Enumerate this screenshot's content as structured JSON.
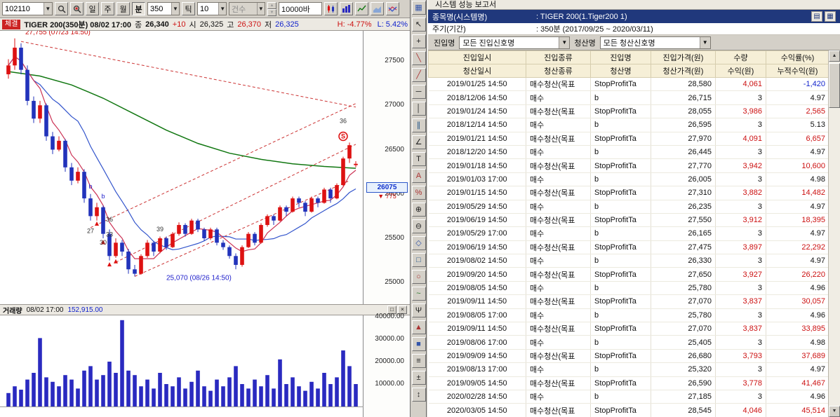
{
  "colors": {
    "up_red": "#dd1111",
    "down_blue": "#2233bb",
    "navy": "#20387c",
    "header_yellow": "#f6efd7",
    "volume_blue": "#2a2ac0",
    "ma_green": "#117711",
    "ma_blue": "#3355cc",
    "ma_red": "#cc3355"
  },
  "left": {
    "toolbar": {
      "symbol": "102110",
      "period_buttons": [
        "일",
        "주",
        "월",
        "분"
      ],
      "active_period": "분",
      "minute_value": "350",
      "tick_label": "틱",
      "tick_value": "10",
      "count_label": "건수",
      "bars_value": "10000바"
    },
    "titlebar": {
      "tab": "체결",
      "title": "TIGER 200(350분) 08/02 17:00",
      "close_label": "종",
      "close_value": "26,340",
      "change": "+10",
      "open_label": "시",
      "open_value": "26,325",
      "high_label": "고",
      "high_value": "26,370",
      "low_label": "저",
      "low_value": "26,325",
      "h_pct": "H: -4.77%",
      "l_pct": "L: 5.42%"
    },
    "volume_bar": {
      "label": "거래량",
      "time": "08/02 17:00",
      "value": "152,915.00",
      "restore_glyph": "□",
      "close_glyph": "×"
    }
  },
  "tool_strip": {
    "icons": [
      {
        "name": "chart-grid-icon",
        "glyph": "▦",
        "color": "#3355aa"
      },
      {
        "name": "cursor-icon",
        "glyph": "↖",
        "color": "#222222"
      },
      {
        "name": "crosshair-icon",
        "glyph": "+",
        "color": "#222222"
      },
      {
        "name": "trendline-down-icon",
        "glyph": "╲",
        "color": "#aa3333"
      },
      {
        "name": "trendline-up-icon",
        "glyph": "╱",
        "color": "#aa3333"
      },
      {
        "name": "horizontal-line-icon",
        "glyph": "─",
        "color": "#222222"
      },
      {
        "name": "vertical-line-icon",
        "glyph": "│",
        "color": "#222222"
      },
      {
        "name": "parallel-channel-icon",
        "glyph": "∥",
        "color": "#225588"
      },
      {
        "name": "angle-line-icon",
        "glyph": "∠",
        "color": "#222222"
      },
      {
        "name": "text-tool-icon",
        "glyph": "T",
        "color": "#222222"
      },
      {
        "name": "annotation-icon",
        "glyph": "A",
        "color": "#aa3333"
      },
      {
        "name": "percent-retracement-icon",
        "glyph": "%",
        "color": "#aa3333"
      },
      {
        "name": "zoom-in-icon",
        "glyph": "⊕",
        "color": "#222222"
      },
      {
        "name": "zoom-out-icon",
        "glyph": "⊖",
        "color": "#222222"
      },
      {
        "name": "diamond-marker-icon",
        "glyph": "◇",
        "color": "#3355aa"
      },
      {
        "name": "rect-marker-icon",
        "glyph": "□",
        "color": "#225588"
      },
      {
        "name": "circle-marker-icon",
        "glyph": "○",
        "color": "#aa3333"
      },
      {
        "name": "wave-icon",
        "glyph": "~",
        "color": "#2a7a2a"
      },
      {
        "name": "pitchfork-icon",
        "glyph": "Ψ",
        "color": "#222222"
      },
      {
        "name": "triangle-marker-icon",
        "glyph": "▲",
        "color": "#aa3333"
      },
      {
        "name": "square-marker-icon",
        "glyph": "■",
        "color": "#3355aa"
      },
      {
        "name": "fibonacci-icon",
        "glyph": "≡",
        "color": "#222222"
      },
      {
        "name": "plus-minus-icon",
        "glyph": "±",
        "color": "#222222"
      },
      {
        "name": "scroll-tool-icon",
        "glyph": "↕",
        "color": "#222222"
      }
    ]
  },
  "chart_data": {
    "type": "candlestick+volume",
    "title": "TIGER 200(350분) 08/02 17:00",
    "last": {
      "close": 26340,
      "change": "+10",
      "open": 26325,
      "high": 26370,
      "low": 26325
    },
    "y_ticks": [
      27500,
      27000,
      26500,
      26000,
      25500,
      25000
    ],
    "volume_ticks": [
      "40000.00",
      "30000.00",
      "20000.00",
      "10000.00"
    ],
    "current_marker": {
      "price": 26075,
      "label": "26075",
      "change_label": "▼ 775"
    },
    "candles": [
      [
        27350,
        27520,
        27300,
        27450
      ],
      [
        27450,
        27755,
        27400,
        27650
      ],
      [
        27650,
        27700,
        27350,
        27400
      ],
      [
        27400,
        27450,
        27000,
        27050
      ],
      [
        27050,
        27100,
        26800,
        26850
      ],
      [
        26850,
        27050,
        26800,
        27000
      ],
      [
        27000,
        27020,
        26600,
        26650
      ],
      [
        26650,
        26700,
        26450,
        26500
      ],
      [
        26500,
        26650,
        26480,
        26600
      ],
      [
        26600,
        26620,
        26250,
        26300
      ],
      [
        26300,
        26350,
        26100,
        26150
      ],
      [
        26150,
        26300,
        26120,
        26250
      ],
      [
        26250,
        26280,
        25900,
        25950
      ],
      [
        25950,
        26000,
        25700,
        25750
      ],
      [
        25750,
        25900,
        25700,
        25850
      ],
      [
        25850,
        25870,
        25500,
        25550
      ],
      [
        25550,
        25600,
        25250,
        25300
      ],
      [
        25300,
        25500,
        25280,
        25450
      ],
      [
        25450,
        25480,
        25300,
        25350
      ],
      [
        25350,
        25380,
        25100,
        25150
      ],
      [
        25150,
        25200,
        25070,
        25100
      ],
      [
        25100,
        25320,
        25090,
        25300
      ],
      [
        25300,
        25480,
        25280,
        25450
      ],
      [
        25450,
        25470,
        25300,
        25350
      ],
      [
        25350,
        25520,
        25330,
        25500
      ],
      [
        25500,
        25520,
        25370,
        25400
      ],
      [
        25400,
        25570,
        25390,
        25550
      ],
      [
        25550,
        25680,
        25530,
        25650
      ],
      [
        25650,
        25670,
        25520,
        25550
      ],
      [
        25550,
        25720,
        25540,
        25700
      ],
      [
        25700,
        25720,
        25570,
        25600
      ],
      [
        25600,
        25620,
        25470,
        25500
      ],
      [
        25500,
        25620,
        25480,
        25600
      ],
      [
        25600,
        25620,
        25420,
        25450
      ],
      [
        25450,
        25480,
        25370,
        25400
      ],
      [
        25400,
        25420,
        25270,
        25300
      ],
      [
        25300,
        25330,
        25150,
        25200
      ],
      [
        25200,
        25420,
        25180,
        25400
      ],
      [
        25400,
        25570,
        25390,
        25550
      ],
      [
        25550,
        25570,
        25420,
        25450
      ],
      [
        25450,
        25670,
        25440,
        25650
      ],
      [
        25650,
        25770,
        25630,
        25750
      ],
      [
        25750,
        25770,
        25650,
        25700
      ],
      [
        25700,
        25870,
        25690,
        25850
      ],
      [
        25850,
        25870,
        25750,
        25800
      ],
      [
        25800,
        25970,
        25790,
        25950
      ],
      [
        25950,
        25970,
        25850,
        25900
      ],
      [
        25900,
        25920,
        25750,
        25800
      ],
      [
        25800,
        25970,
        25790,
        25950
      ],
      [
        25950,
        25970,
        25850,
        25900
      ],
      [
        25900,
        26070,
        25890,
        26050
      ],
      [
        26050,
        26070,
        25900,
        25950
      ],
      [
        25950,
        26120,
        25940,
        26100
      ],
      [
        26100,
        26420,
        26090,
        26400
      ],
      [
        26400,
        26580,
        26350,
        26550
      ],
      [
        26325,
        26370,
        26300,
        26340
      ]
    ],
    "volumes": [
      6000,
      9000,
      7500,
      12000,
      15000,
      30500,
      13000,
      11000,
      9000,
      14000,
      12000,
      8000,
      16000,
      18000,
      12000,
      14000,
      20000,
      15000,
      38500,
      16000,
      14000,
      9000,
      12000,
      8000,
      15000,
      10000,
      9000,
      13000,
      8000,
      11000,
      16000,
      9000,
      7000,
      12000,
      9000,
      13000,
      18000,
      10000,
      8000,
      12000,
      9000,
      14000,
      8000,
      21000,
      10000,
      13000,
      9000,
      7000,
      11000,
      8000,
      15000,
      10000,
      13000,
      25000,
      18000,
      10000
    ],
    "ma_green": [
      [
        0,
        27380
      ],
      [
        5,
        27330
      ],
      [
        10,
        27230
      ],
      [
        15,
        27080
      ],
      [
        20,
        26900
      ],
      [
        25,
        26720
      ],
      [
        30,
        26570
      ],
      [
        35,
        26460
      ],
      [
        40,
        26390
      ],
      [
        45,
        26340
      ],
      [
        50,
        26310
      ],
      [
        55,
        26290
      ]
    ],
    "trendlines": [
      [
        2,
        27720,
        55,
        26980
      ],
      [
        13,
        25620,
        55,
        27020
      ],
      [
        17,
        25230,
        55,
        26560
      ],
      [
        20,
        25070,
        54,
        26150
      ]
    ],
    "labels": [
      {
        "i": 2,
        "p": 27800,
        "text": "27,755 (07/23 14:50)",
        "color": "#cc1111",
        "anchor": "start",
        "dx": 6,
        "size": 10
      },
      {
        "i": 25,
        "p": 25030,
        "text": "25,070 (08/26 14:50)",
        "color": "#2222cc",
        "anchor": "start",
        "dx": 0,
        "size": 10
      },
      {
        "i": 13,
        "p": 26060,
        "text": "b",
        "color": "#2222cc",
        "size": 9
      },
      {
        "i": 15,
        "p": 25950,
        "text": "b",
        "color": "#2222cc",
        "size": 9
      },
      {
        "i": 13,
        "p": 25560,
        "text": "27",
        "color": "#333333",
        "size": 9
      },
      {
        "i": 16,
        "p": 25690,
        "text": "36",
        "color": "#333333",
        "size": 9
      },
      {
        "i": 16,
        "p": 25520,
        "text": "33",
        "color": "#333333",
        "size": 9
      },
      {
        "i": 15,
        "p": 25430,
        "text": "30",
        "color": "#333333",
        "size": 9
      },
      {
        "i": 24,
        "p": 25580,
        "text": "39",
        "color": "#333333",
        "size": 9
      },
      {
        "i": 53,
        "p": 26800,
        "text": "36",
        "color": "#333333",
        "size": 9
      }
    ],
    "arrows": [
      {
        "i": 14,
        "p": 25690
      },
      {
        "i": 15,
        "p": 25480
      },
      {
        "i": 16,
        "p": 25230
      },
      {
        "i": 17,
        "p": 25265
      }
    ],
    "s_marker": {
      "i": 53,
      "p": 26650,
      "text": "S"
    }
  },
  "report": {
    "title": "시스템 성능 보고서",
    "symbol_row": {
      "label": "종목명(시스템명)",
      "value": ": TIGER 200(1.Tiger200 1)"
    },
    "period_row": {
      "label": "주기(기간)",
      "value": ": 350분  (2017/09/25 ~ 2020/03/11)"
    },
    "filters": {
      "entry_label": "진입명",
      "entry_value": "모든 진입신호명",
      "exit_label": "청산명",
      "exit_value": "모든 청산신호명"
    },
    "icons": {
      "print_glyph": "▤",
      "export_glyph": "▦"
    },
    "table": {
      "header_row1": [
        "진입일시",
        "진입종류",
        "진입명",
        "진입가격(원)",
        "수량",
        "수익률(%)"
      ],
      "header_row2": [
        "청산일시",
        "청산종류",
        "청산명",
        "청산가격(원)",
        "수익(원)",
        "누적수익(원)"
      ],
      "rows": [
        {
          "date": "2019/01/25 14:50",
          "type": "매수청산(목표",
          "name": "StopProfitTa",
          "price": "28,580",
          "qty": "4,061",
          "ret": "-1,420",
          "kind": "exit"
        },
        {
          "date": "2018/12/06 14:50",
          "type": "매수",
          "name": "b",
          "price": "26,715",
          "qty": "3",
          "ret": "4.97",
          "kind": "entry"
        },
        {
          "date": "2019/01/24 14:50",
          "type": "매수청산(목표",
          "name": "StopProfitTa",
          "price": "28,055",
          "qty": "3,986",
          "ret": "2,565",
          "kind": "exit"
        },
        {
          "date": "2018/12/14 14:50",
          "type": "매수",
          "name": "b",
          "price": "26,595",
          "qty": "3",
          "ret": "5.13",
          "kind": "entry"
        },
        {
          "date": "2019/01/21 14:50",
          "type": "매수청산(목표",
          "name": "StopProfitTa",
          "price": "27,970",
          "qty": "4,091",
          "ret": "6,657",
          "kind": "exit"
        },
        {
          "date": "2018/12/20 14:50",
          "type": "매수",
          "name": "b",
          "price": "26,445",
          "qty": "3",
          "ret": "4.97",
          "kind": "entry"
        },
        {
          "date": "2019/01/18 14:50",
          "type": "매수청산(목표",
          "name": "StopProfitTa",
          "price": "27,770",
          "qty": "3,942",
          "ret": "10,600",
          "kind": "exit"
        },
        {
          "date": "2019/01/03 17:00",
          "type": "매수",
          "name": "b",
          "price": "26,005",
          "qty": "3",
          "ret": "4.98",
          "kind": "entry"
        },
        {
          "date": "2019/01/15 14:50",
          "type": "매수청산(목표",
          "name": "StopProfitTa",
          "price": "27,310",
          "qty": "3,882",
          "ret": "14,482",
          "kind": "exit"
        },
        {
          "date": "2019/05/29 14:50",
          "type": "매수",
          "name": "b",
          "price": "26,235",
          "qty": "3",
          "ret": "4.97",
          "kind": "entry"
        },
        {
          "date": "2019/06/19 14:50",
          "type": "매수청산(목표",
          "name": "StopProfitTa",
          "price": "27,550",
          "qty": "3,912",
          "ret": "18,395",
          "kind": "exit"
        },
        {
          "date": "2019/05/29 17:00",
          "type": "매수",
          "name": "b",
          "price": "26,165",
          "qty": "3",
          "ret": "4.97",
          "kind": "entry"
        },
        {
          "date": "2019/06/19 14:50",
          "type": "매수청산(목표",
          "name": "StopProfitTa",
          "price": "27,475",
          "qty": "3,897",
          "ret": "22,292",
          "kind": "exit"
        },
        {
          "date": "2019/08/02 14:50",
          "type": "매수",
          "name": "b",
          "price": "26,330",
          "qty": "3",
          "ret": "4.97",
          "kind": "entry"
        },
        {
          "date": "2019/09/20 14:50",
          "type": "매수청산(목표",
          "name": "StopProfitTa",
          "price": "27,650",
          "qty": "3,927",
          "ret": "26,220",
          "kind": "exit"
        },
        {
          "date": "2019/08/05 14:50",
          "type": "매수",
          "name": "b",
          "price": "25,780",
          "qty": "3",
          "ret": "4.96",
          "kind": "entry"
        },
        {
          "date": "2019/09/11 14:50",
          "type": "매수청산(목표",
          "name": "StopProfitTa",
          "price": "27,070",
          "qty": "3,837",
          "ret": "30,057",
          "kind": "exit"
        },
        {
          "date": "2019/08/05 17:00",
          "type": "매수",
          "name": "b",
          "price": "25,780",
          "qty": "3",
          "ret": "4.96",
          "kind": "entry"
        },
        {
          "date": "2019/09/11 14:50",
          "type": "매수청산(목표",
          "name": "StopProfitTa",
          "price": "27,070",
          "qty": "3,837",
          "ret": "33,895",
          "kind": "exit"
        },
        {
          "date": "2019/08/06 17:00",
          "type": "매수",
          "name": "b",
          "price": "25,405",
          "qty": "3",
          "ret": "4.98",
          "kind": "entry"
        },
        {
          "date": "2019/09/09 14:50",
          "type": "매수청산(목표",
          "name": "StopProfitTa",
          "price": "26,680",
          "qty": "3,793",
          "ret": "37,689",
          "kind": "exit"
        },
        {
          "date": "2019/08/13 17:00",
          "type": "매수",
          "name": "b",
          "price": "25,320",
          "qty": "3",
          "ret": "4.97",
          "kind": "entry"
        },
        {
          "date": "2019/09/05 14:50",
          "type": "매수청산(목표",
          "name": "StopProfitTa",
          "price": "26,590",
          "qty": "3,778",
          "ret": "41,467",
          "kind": "exit"
        },
        {
          "date": "2020/02/28 14:50",
          "type": "매수",
          "name": "b",
          "price": "27,185",
          "qty": "3",
          "ret": "4.96",
          "kind": "entry"
        },
        {
          "date": "2020/03/05 14:50",
          "type": "매수청산(목표",
          "name": "StopProfitTa",
          "price": "28,545",
          "qty": "4,046",
          "ret": "45,514",
          "kind": "exit"
        }
      ]
    }
  }
}
